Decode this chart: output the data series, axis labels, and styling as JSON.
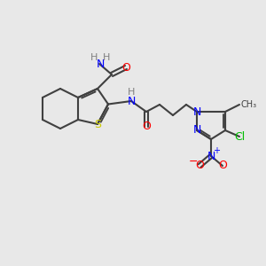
{
  "background_color": "#e8e8e8",
  "atom_colors": {
    "N": "#0000ff",
    "O": "#ff0000",
    "S": "#cccc00",
    "Cl": "#00bb00",
    "C": "#404040",
    "H": "#808080"
  },
  "bond_color": "#404040",
  "line_width": 1.5
}
